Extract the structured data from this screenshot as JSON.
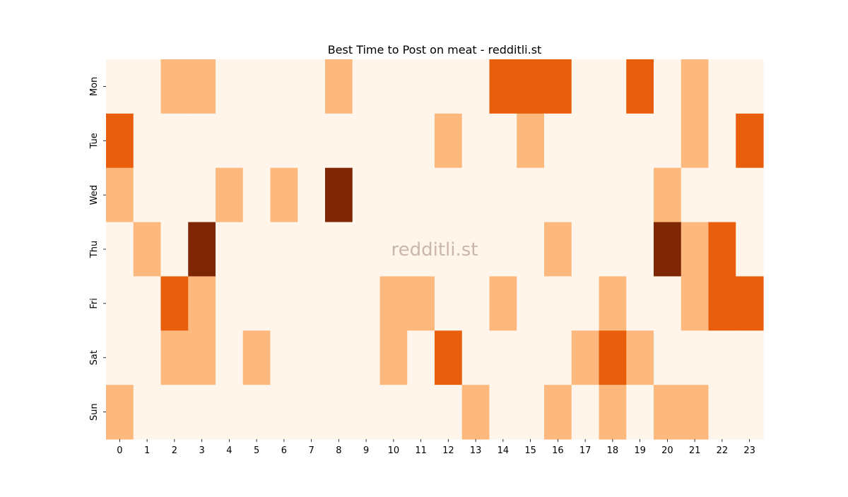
{
  "chart_data": {
    "type": "heatmap",
    "title": "Best Time to Post on meat - redditli.st",
    "watermark": "redditli.st",
    "xlabel": "",
    "ylabel": "",
    "x_categories": [
      "0",
      "1",
      "2",
      "3",
      "4",
      "5",
      "6",
      "7",
      "8",
      "9",
      "10",
      "11",
      "12",
      "13",
      "14",
      "15",
      "16",
      "17",
      "18",
      "19",
      "20",
      "21",
      "22",
      "23"
    ],
    "y_categories": [
      "Mon",
      "Tue",
      "Wed",
      "Thu",
      "Fri",
      "Sat",
      "Sun"
    ],
    "value_range": [
      0,
      3
    ],
    "colormap": "Oranges",
    "level_colors": [
      "#fff5eb",
      "#fdb97d",
      "#e95e0d",
      "#7f2704"
    ],
    "values": [
      [
        0,
        0,
        1,
        1,
        0,
        0,
        0,
        0,
        1,
        0,
        0,
        0,
        0,
        0,
        2,
        2,
        2,
        0,
        0,
        2,
        0,
        1,
        0,
        0
      ],
      [
        2,
        0,
        0,
        0,
        0,
        0,
        0,
        0,
        0,
        0,
        0,
        0,
        1,
        0,
        0,
        1,
        0,
        0,
        0,
        0,
        0,
        1,
        0,
        2
      ],
      [
        1,
        0,
        0,
        0,
        1,
        0,
        1,
        0,
        3,
        0,
        0,
        0,
        0,
        0,
        0,
        0,
        0,
        0,
        0,
        0,
        1,
        0,
        0,
        0
      ],
      [
        0,
        1,
        0,
        3,
        0,
        0,
        0,
        0,
        0,
        0,
        0,
        0,
        0,
        0,
        0,
        0,
        1,
        0,
        0,
        0,
        3,
        1,
        2,
        0
      ],
      [
        0,
        0,
        2,
        1,
        0,
        0,
        0,
        0,
        0,
        0,
        1,
        1,
        0,
        0,
        1,
        0,
        0,
        0,
        1,
        0,
        0,
        1,
        2,
        2
      ],
      [
        0,
        0,
        1,
        1,
        0,
        1,
        0,
        0,
        0,
        0,
        1,
        0,
        2,
        0,
        0,
        0,
        0,
        1,
        2,
        1,
        0,
        0,
        0,
        0
      ],
      [
        1,
        0,
        0,
        0,
        0,
        0,
        0,
        0,
        0,
        0,
        0,
        0,
        0,
        1,
        0,
        0,
        1,
        0,
        1,
        0,
        1,
        1,
        0,
        0
      ]
    ],
    "colorbar": false,
    "grid": false
  }
}
